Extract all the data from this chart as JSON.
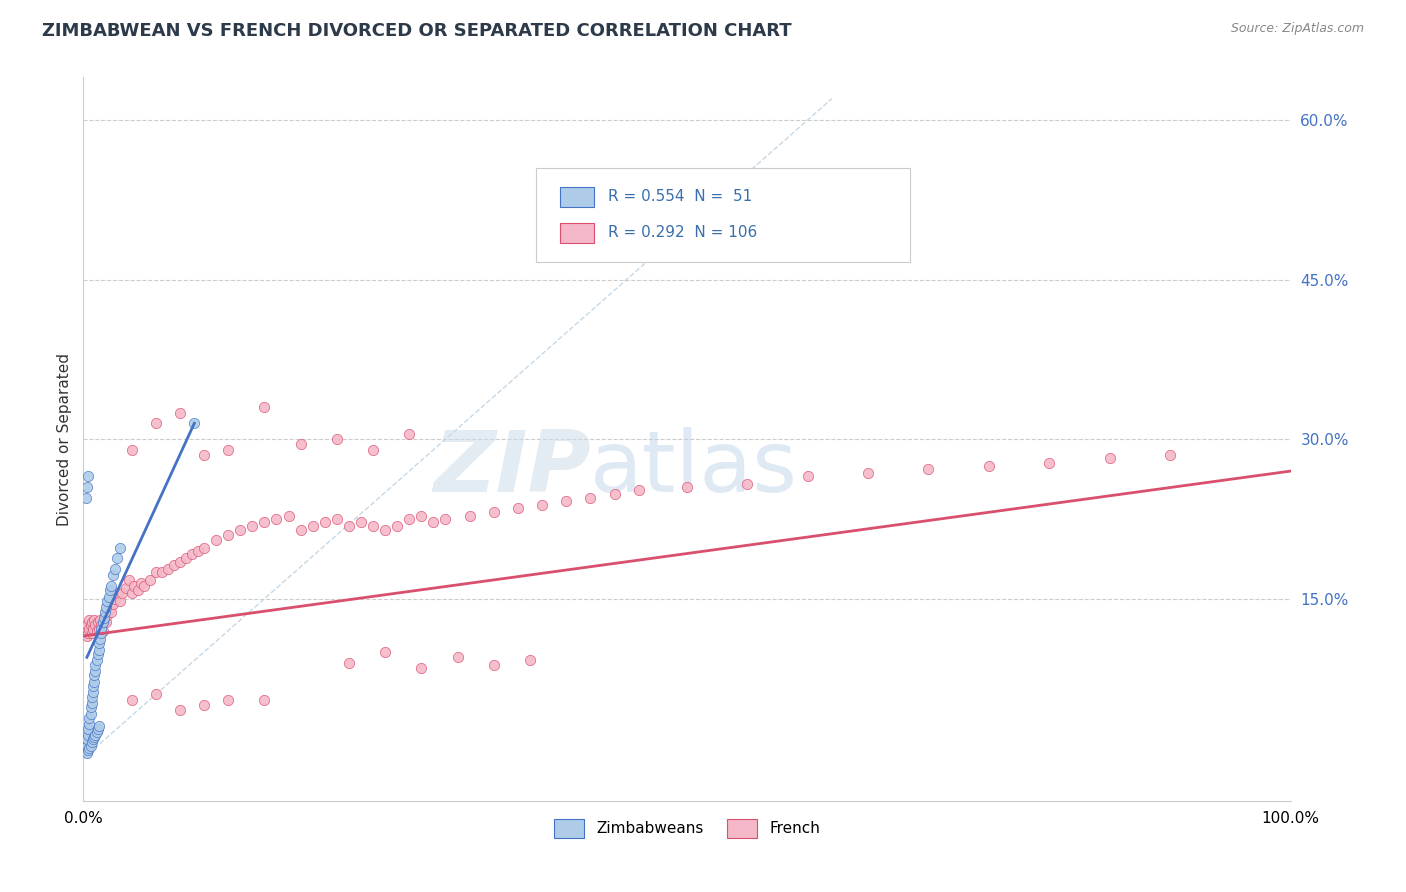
{
  "title": "ZIMBABWEAN VS FRENCH DIVORCED OR SEPARATED CORRELATION CHART",
  "source_text": "Source: ZipAtlas.com",
  "ylabel": "Divorced or Separated",
  "r_zimbabwean": 0.554,
  "n_zimbabwean": 51,
  "r_french": 0.292,
  "n_french": 106,
  "legend_label_zimbabwean": "Zimbabweans",
  "legend_label_french": "French",
  "color_zimbabwean": "#aecce8",
  "color_zimbabwean_line": "#4472c4",
  "color_zimbabwean_edge": "#4472c4",
  "color_french": "#f4b8c8",
  "color_french_line": "#d94f6e",
  "color_french_edge": "#d94f6e",
  "color_diag": "#b8cfe0",
  "xlim": [
    0.0,
    1.0
  ],
  "ylim": [
    -0.04,
    0.64
  ],
  "yticks": [
    0.15,
    0.3,
    0.45,
    0.6
  ],
  "ytick_labels": [
    "15.0%",
    "30.0%",
    "45.0%",
    "60.0%"
  ],
  "watermark_zip": "ZIP",
  "watermark_atlas": "atlas",
  "zim_line_x0": 0.003,
  "zim_line_x1": 0.092,
  "zim_line_y0": 0.095,
  "zim_line_y1": 0.315,
  "fr_line_x0": 0.0,
  "fr_line_x1": 1.0,
  "fr_line_y0": 0.115,
  "fr_line_y1": 0.27,
  "zimbabwean_x": [
    0.002,
    0.003,
    0.003,
    0.004,
    0.004,
    0.005,
    0.005,
    0.006,
    0.006,
    0.007,
    0.007,
    0.008,
    0.008,
    0.009,
    0.009,
    0.01,
    0.01,
    0.011,
    0.012,
    0.013,
    0.013,
    0.014,
    0.015,
    0.015,
    0.016,
    0.017,
    0.018,
    0.019,
    0.02,
    0.021,
    0.022,
    0.023,
    0.025,
    0.026,
    0.028,
    0.03,
    0.003,
    0.004,
    0.005,
    0.006,
    0.007,
    0.008,
    0.009,
    0.01,
    0.011,
    0.012,
    0.013,
    0.002,
    0.003,
    0.004,
    0.092
  ],
  "zimbabwean_y": [
    0.008,
    0.012,
    0.018,
    0.022,
    0.028,
    0.032,
    0.038,
    0.042,
    0.048,
    0.052,
    0.058,
    0.062,
    0.068,
    0.072,
    0.078,
    0.082,
    0.088,
    0.092,
    0.098,
    0.102,
    0.108,
    0.112,
    0.118,
    0.122,
    0.128,
    0.132,
    0.138,
    0.142,
    0.148,
    0.152,
    0.158,
    0.162,
    0.172,
    0.178,
    0.188,
    0.198,
    0.005,
    0.008,
    0.01,
    0.012,
    0.015,
    0.018,
    0.02,
    0.022,
    0.025,
    0.028,
    0.03,
    0.245,
    0.255,
    0.265,
    0.315
  ],
  "french_x": [
    0.002,
    0.003,
    0.003,
    0.004,
    0.005,
    0.005,
    0.006,
    0.007,
    0.007,
    0.008,
    0.009,
    0.01,
    0.011,
    0.012,
    0.013,
    0.014,
    0.015,
    0.016,
    0.017,
    0.018,
    0.019,
    0.02,
    0.021,
    0.022,
    0.023,
    0.025,
    0.026,
    0.028,
    0.03,
    0.032,
    0.035,
    0.038,
    0.04,
    0.042,
    0.045,
    0.048,
    0.05,
    0.055,
    0.06,
    0.065,
    0.07,
    0.075,
    0.08,
    0.085,
    0.09,
    0.095,
    0.1,
    0.11,
    0.12,
    0.13,
    0.14,
    0.15,
    0.16,
    0.17,
    0.18,
    0.19,
    0.2,
    0.21,
    0.22,
    0.23,
    0.24,
    0.25,
    0.26,
    0.27,
    0.28,
    0.29,
    0.3,
    0.32,
    0.34,
    0.36,
    0.38,
    0.4,
    0.42,
    0.44,
    0.46,
    0.5,
    0.55,
    0.6,
    0.65,
    0.7,
    0.75,
    0.8,
    0.85,
    0.9,
    0.22,
    0.25,
    0.28,
    0.31,
    0.34,
    0.37,
    0.04,
    0.06,
    0.08,
    0.1,
    0.12,
    0.15,
    0.18,
    0.21,
    0.24,
    0.27,
    0.04,
    0.06,
    0.08,
    0.1,
    0.12,
    0.15
  ],
  "french_y": [
    0.12,
    0.115,
    0.125,
    0.118,
    0.122,
    0.13,
    0.125,
    0.118,
    0.128,
    0.122,
    0.13,
    0.125,
    0.12,
    0.128,
    0.122,
    0.13,
    0.125,
    0.12,
    0.128,
    0.135,
    0.128,
    0.135,
    0.14,
    0.145,
    0.138,
    0.145,
    0.15,
    0.155,
    0.148,
    0.155,
    0.16,
    0.168,
    0.155,
    0.162,
    0.158,
    0.165,
    0.162,
    0.168,
    0.175,
    0.175,
    0.178,
    0.182,
    0.185,
    0.188,
    0.192,
    0.195,
    0.198,
    0.205,
    0.21,
    0.215,
    0.218,
    0.222,
    0.225,
    0.228,
    0.215,
    0.218,
    0.222,
    0.225,
    0.218,
    0.222,
    0.218,
    0.215,
    0.218,
    0.225,
    0.228,
    0.222,
    0.225,
    0.228,
    0.232,
    0.235,
    0.238,
    0.242,
    0.245,
    0.248,
    0.252,
    0.255,
    0.258,
    0.265,
    0.268,
    0.272,
    0.275,
    0.278,
    0.282,
    0.285,
    0.09,
    0.1,
    0.085,
    0.095,
    0.088,
    0.092,
    0.29,
    0.315,
    0.325,
    0.285,
    0.29,
    0.33,
    0.295,
    0.3,
    0.29,
    0.305,
    0.055,
    0.06,
    0.045,
    0.05,
    0.055,
    0.055
  ]
}
